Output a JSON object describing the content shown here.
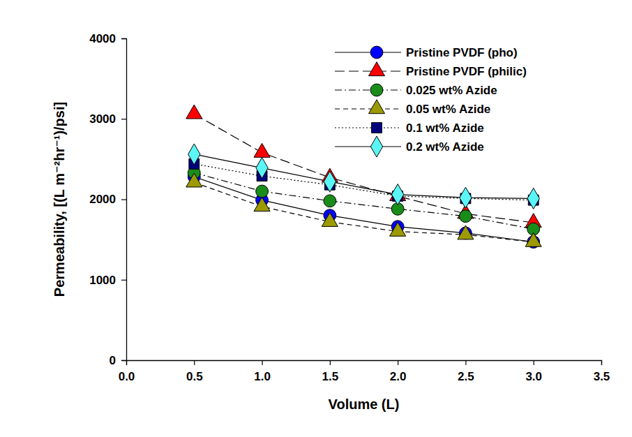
{
  "chart_data": {
    "type": "line",
    "x_label": "Volume (L)",
    "y_label": "Permeability, [(L m⁻²hr⁻¹)/psi]",
    "x": [
      0.5,
      1.0,
      1.5,
      2.0,
      2.5,
      3.0
    ],
    "xlim": [
      0,
      3.5
    ],
    "xticks": [
      {
        "value": 0,
        "label": "0.0"
      },
      0.5,
      {
        "value": 1,
        "label": "1.0"
      },
      1.5,
      {
        "value": 2,
        "label": "2.0"
      },
      2.5,
      {
        "value": 3,
        "label": "3.0"
      },
      3.5
    ],
    "ylim": [
      0,
      4000
    ],
    "yticks": [
      0,
      1000,
      2000,
      3000,
      4000
    ],
    "grid": false,
    "legend": "upper right",
    "series": [
      {
        "name": "Pristine PVDF (pho)",
        "color": "#0000ff",
        "marker": "circle",
        "line_style": "solid",
        "values": [
          2280,
          1990,
          1800,
          1660,
          1580,
          1470
        ]
      },
      {
        "name": "Pristine PVDF (philic)",
        "color": "#ff0000",
        "marker": "triangle",
        "line_style": "long-dash",
        "values": [
          3060,
          2580,
          2270,
          2040,
          1820,
          1710
        ]
      },
      {
        "name": "0.025 wt% Azide",
        "color": "#1a8c1a",
        "marker": "circle",
        "line_style": "dash-dot",
        "values": [
          2330,
          2100,
          1980,
          1880,
          1790,
          1630
        ]
      },
      {
        "name": "0.05 wt% Azide",
        "color": "#9c9a00",
        "marker": "triangle",
        "line_style": "dash",
        "values": [
          2210,
          1910,
          1720,
          1600,
          1560,
          1470
        ]
      },
      {
        "name": "0.1 wt% Azide",
        "color": "#00007f",
        "marker": "square",
        "line_style": "dotted",
        "values": [
          2440,
          2290,
          2180,
          2040,
          2010,
          1990
        ]
      },
      {
        "name": "0.2 wt% Azide",
        "color": "#5cf5f5",
        "marker": "diamond",
        "line_style": "solid",
        "values": [
          2560,
          2390,
          2220,
          2060,
          2020,
          2010
        ]
      }
    ]
  }
}
